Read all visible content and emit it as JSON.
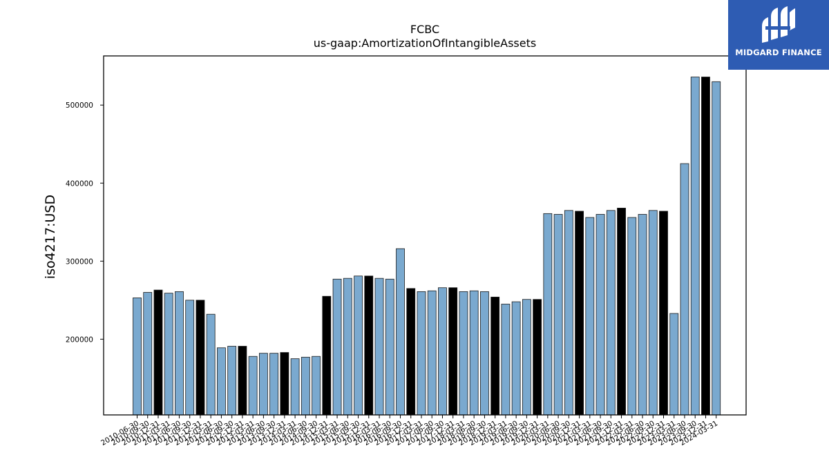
{
  "logo": {
    "text": "MIDGARD FINANCE",
    "background": "#2e5cb3",
    "icon": "midgard-logo-icon"
  },
  "chart_data": {
    "type": "bar",
    "title": "FCBC",
    "subtitle": "us-gaap:AmortizationOfIntangibleAssets",
    "ylabel": "iso4217:USD",
    "xlabel": "",
    "ylim": [
      103000,
      563000
    ],
    "yticks": [
      200000,
      300000,
      400000,
      500000
    ],
    "grid": false,
    "colors": {
      "quarterly": "#7aa9cf",
      "annual": "#000000",
      "edge": "#1a1a1a"
    },
    "categories": [
      "2010-06-30",
      "2010-09-30",
      "2010-12-31",
      "2011-03-31",
      "2011-06-30",
      "2011-09-30",
      "2011-12-31",
      "2012-03-31",
      "2012-06-30",
      "2012-09-30",
      "2012-12-31",
      "2013-03-31",
      "2013-06-30",
      "2013-09-30",
      "2013-12-31",
      "2014-03-31",
      "2014-06-30",
      "2014-09-30",
      "2014-12-31",
      "2015-03-31",
      "2015-06-30",
      "2015-09-30",
      "2015-12-31",
      "2016-03-31",
      "2016-06-30",
      "2016-09-30",
      "2016-12-31",
      "2017-03-31",
      "2017-06-30",
      "2017-09-30",
      "2017-12-31",
      "2018-03-31",
      "2018-06-30",
      "2018-09-30",
      "2018-12-31",
      "2019-03-31",
      "2019-06-30",
      "2019-09-30",
      "2019-12-31",
      "2020-03-31",
      "2020-06-30",
      "2020-09-30",
      "2020-12-31",
      "2021-03-31",
      "2021-06-30",
      "2021-09-30",
      "2021-12-31",
      "2022-03-31",
      "2022-06-30",
      "2022-09-30",
      "2022-12-31",
      "2023-03-31",
      "2023-06-30",
      "2023-09-30",
      "2023-12-31",
      "2024-03-31"
    ],
    "values": [
      253000,
      260000,
      263000,
      259000,
      261000,
      250000,
      250000,
      232000,
      189000,
      191000,
      191000,
      178000,
      182000,
      182000,
      183000,
      175000,
      177000,
      178000,
      255000,
      277000,
      278000,
      281000,
      281000,
      278000,
      277000,
      316000,
      265000,
      261000,
      262000,
      266000,
      266000,
      261000,
      262000,
      261000,
      254000,
      245000,
      248000,
      251000,
      251000,
      361000,
      360000,
      365000,
      364000,
      356000,
      360000,
      365000,
      368000,
      356000,
      360000,
      365000,
      364000,
      233000,
      425000,
      536000,
      536000,
      530000
    ],
    "annual": [
      false,
      false,
      true,
      false,
      false,
      false,
      true,
      false,
      false,
      false,
      true,
      false,
      false,
      false,
      true,
      false,
      false,
      false,
      true,
      false,
      false,
      false,
      true,
      false,
      false,
      false,
      true,
      false,
      false,
      false,
      true,
      false,
      false,
      false,
      true,
      false,
      false,
      false,
      true,
      false,
      false,
      false,
      true,
      false,
      false,
      false,
      true,
      false,
      false,
      false,
      true,
      false,
      false,
      false,
      true,
      false
    ]
  }
}
